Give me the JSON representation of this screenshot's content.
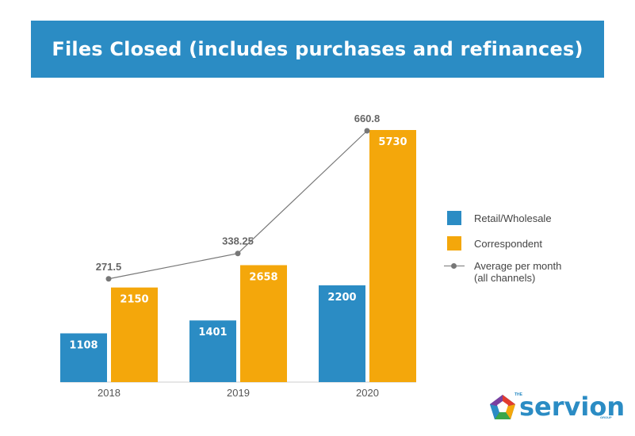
{
  "header": {
    "title": "Files Closed (includes purchases and refinances)"
  },
  "colors": {
    "banner": "#2b8cc4",
    "retail": "#2b8cc4",
    "correspondent": "#f4a70b",
    "line": "#777777"
  },
  "chart_data": {
    "type": "bar",
    "categories": [
      "2018",
      "2019",
      "2020"
    ],
    "series": [
      {
        "name": "Retail/Wholesale",
        "values": [
          1108,
          1401,
          2200
        ],
        "color": "#2b8cc4"
      },
      {
        "name": "Correspondent",
        "values": [
          2150,
          2658,
          5730
        ],
        "color": "#f4a70b"
      }
    ],
    "line_series": {
      "name": "Average per month (all channels)",
      "name_lines": [
        "Average per month",
        "(all channels)"
      ],
      "values": [
        271.5,
        338.25,
        660.8
      ],
      "labels": [
        "271.5",
        "338.25",
        "660.8"
      ]
    },
    "legend": "right"
  },
  "logo": {
    "the": "THE",
    "name": "servion",
    "group": "GROUP",
    "icon": "pentagon-logo-icon"
  }
}
